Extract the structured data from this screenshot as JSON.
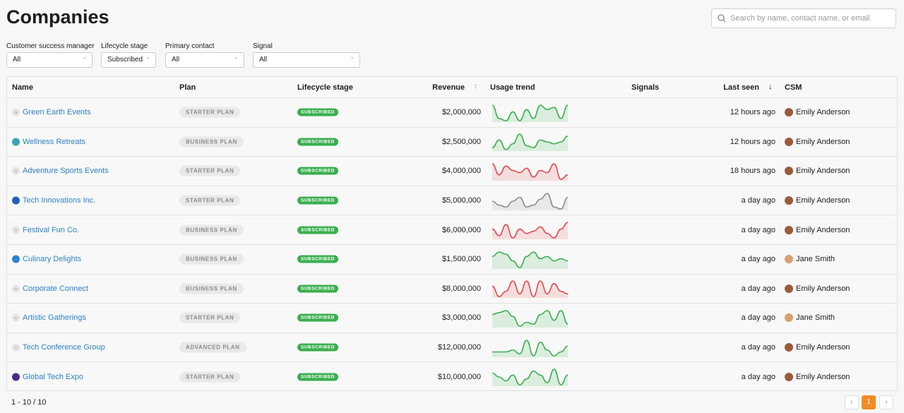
{
  "header": {
    "title": "Companies",
    "search_placeholder": "Search by name, contact name, or email"
  },
  "filters": [
    {
      "label": "Customer success manager",
      "value": "All"
    },
    {
      "label": "Lifecycle stage",
      "value": "Subscribed"
    },
    {
      "label": "Primary contact",
      "value": "All"
    },
    {
      "label": "Signal",
      "value": "All"
    }
  ],
  "table": {
    "columns": [
      "Name",
      "Plan",
      "Lifecycle stage",
      "Revenue",
      "Usage trend",
      "Signals",
      "Last seen",
      "CSM"
    ],
    "rows": [
      {
        "initials": "GE",
        "name": "Green Earth Events",
        "plan": "STARTER PLAN",
        "stage": "SUBSCRIBED",
        "revenue": "$2,000,000",
        "usage": [
          8,
          2,
          1,
          5,
          1,
          6,
          2,
          8,
          6,
          7,
          2,
          8
        ],
        "usage_color": "#3aae4f",
        "last_seen": "12 hours ago",
        "csm": "Emily Anderson"
      },
      {
        "name": "Wellness Retreats",
        "plan": "BUSINESS PLAN",
        "stage": "SUBSCRIBED",
        "revenue": "$2,500,000",
        "usage": [
          2,
          6,
          1,
          4,
          9,
          3,
          2,
          6,
          5,
          4,
          5,
          8
        ],
        "usage_color": "#3aae4f",
        "last_seen": "12 hours ago",
        "csm": "Emily Anderson"
      },
      {
        "initials": "AS",
        "name": "Adventure Sports Events",
        "plan": "STARTER PLAN",
        "stage": "SUBSCRIBED",
        "revenue": "$4,000,000",
        "usage": [
          8,
          3,
          7,
          5,
          4,
          6,
          2,
          5,
          4,
          8,
          1,
          3
        ],
        "usage_color": "#e5484d",
        "last_seen": "18 hours ago",
        "csm": "Emily Anderson"
      },
      {
        "name": "Tech Innovations Inc.",
        "plan": "STARTER PLAN",
        "stage": "SUBSCRIBED",
        "revenue": "$5,000,000",
        "usage": [
          5,
          3,
          2,
          5,
          7,
          2,
          3,
          6,
          9,
          2,
          1,
          7
        ],
        "usage_color": "#8a8a8a",
        "last_seen": "a day ago",
        "csm": "Emily Anderson"
      },
      {
        "initials": "FF",
        "name": "Festival Fun Co.",
        "plan": "BUSINESS PLAN",
        "stage": "SUBSCRIBED",
        "revenue": "$6,000,000",
        "usage": [
          6,
          3,
          8,
          2,
          6,
          4,
          5,
          7,
          4,
          2,
          6,
          9
        ],
        "usage_color": "#e5484d",
        "last_seen": "a day ago",
        "csm": "Emily Anderson"
      },
      {
        "name": "Culinary Delights",
        "plan": "BUSINESS PLAN",
        "stage": "SUBSCRIBED",
        "revenue": "$1,500,000",
        "usage": [
          5,
          7,
          6,
          3,
          0,
          5,
          7,
          4,
          5,
          3,
          4,
          3
        ],
        "usage_color": "#3aae4f",
        "last_seen": "a day ago",
        "csm": "Jane Smith"
      },
      {
        "initials": "CC",
        "name": "Corporate Connect",
        "plan": "BUSINESS PLAN",
        "stage": "SUBSCRIBED",
        "revenue": "$8,000,000",
        "usage": [
          6,
          2,
          4,
          8,
          3,
          8,
          2,
          8,
          3,
          7,
          4,
          3
        ],
        "usage_color": "#e5484d",
        "last_seen": "a day ago",
        "csm": "Emily Anderson"
      },
      {
        "initials": "AG",
        "name": "Artistic Gatherings",
        "plan": "STARTER PLAN",
        "stage": "SUBSCRIBED",
        "revenue": "$3,000,000",
        "usage": [
          6,
          7,
          8,
          5,
          0,
          2,
          1,
          6,
          8,
          3,
          8,
          1
        ],
        "usage_color": "#3aae4f",
        "last_seen": "a day ago",
        "csm": "Jane Smith"
      },
      {
        "initials": "TC",
        "name": "Tech Conference Group",
        "plan": "ADVANCED PLAN",
        "stage": "SUBSCRIBED",
        "revenue": "$12,000,000",
        "usage": [
          3,
          3,
          3,
          4,
          2,
          9,
          1,
          8,
          4,
          1,
          3,
          6
        ],
        "usage_color": "#3aae4f",
        "last_seen": "a day ago",
        "csm": "Emily Anderson"
      },
      {
        "name": "Global Tech Expo",
        "plan": "STARTER PLAN",
        "stage": "SUBSCRIBED",
        "revenue": "$10,000,000",
        "usage": [
          7,
          5,
          3,
          6,
          1,
          4,
          8,
          6,
          2,
          9,
          1,
          6
        ],
        "usage_color": "#3aae4f",
        "last_seen": "a day ago",
        "csm": "Emily Anderson"
      }
    ]
  },
  "footer": {
    "range": "1 - 10 / 10",
    "page": "1"
  }
}
